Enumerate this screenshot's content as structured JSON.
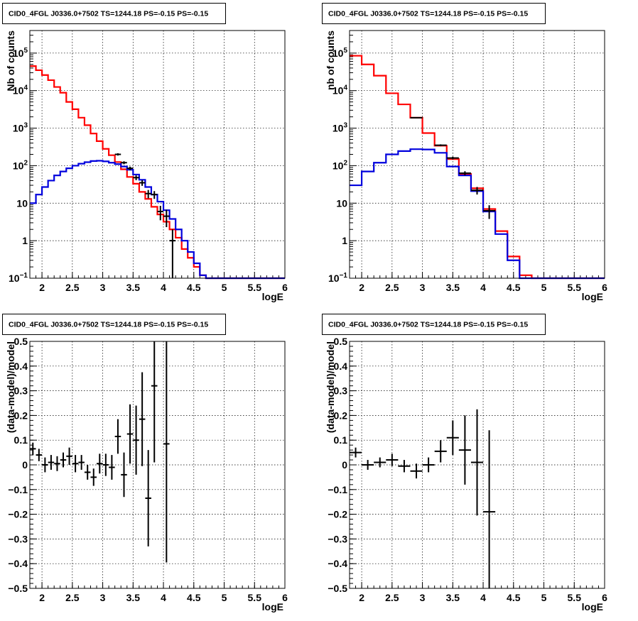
{
  "colors": {
    "data": "#000000",
    "model_total": "#ff0000",
    "model_component": "#0000dd"
  },
  "chart_data": [
    {
      "type": "line",
      "title": "CID0_4FGL J0336.0+7502 TS=1244.18 PS=-0.15 PS=-0.15",
      "xlabel": "logE",
      "ylabel": "Nb of counts",
      "xlim": [
        1.8,
        6.0
      ],
      "ylim": [
        0.1,
        400000
      ],
      "yscale": "log",
      "grid": true,
      "bin_width": 0.1,
      "x_ticks": [
        "2",
        "2.5",
        "3",
        "3.5",
        "4",
        "4.5",
        "5",
        "5.5",
        "6"
      ],
      "y_ticks": [
        "10^-1",
        "1",
        "10",
        "10^2",
        "10^3",
        "10^4",
        "10^5"
      ],
      "series": [
        {
          "color": "red",
          "style": "histogram",
          "x": [
            1.8,
            1.9,
            2.0,
            2.1,
            2.2,
            2.3,
            2.4,
            2.5,
            2.6,
            2.7,
            2.8,
            2.9,
            3.0,
            3.1,
            3.2,
            3.3,
            3.4,
            3.5,
            3.6,
            3.7,
            3.8,
            3.9,
            4.0,
            4.1,
            4.2,
            4.3,
            4.4,
            4.5,
            4.6,
            4.7,
            4.8,
            4.9,
            5.0,
            5.1,
            5.2,
            5.3,
            5.4,
            5.5,
            5.6,
            5.7,
            5.8,
            5.9
          ],
          "values": [
            45000,
            35000,
            26000,
            19000,
            12500,
            8800,
            5000,
            3200,
            1900,
            1200,
            720,
            450,
            280,
            190,
            125,
            80,
            50,
            33,
            20,
            13,
            8,
            5,
            3.2,
            2,
            1.2,
            0.6,
            0.35,
            0.2,
            0.12,
            0.1,
            0.1,
            0.1,
            0.1,
            0.1,
            0.1,
            0.1,
            0.1,
            0.1,
            0.1,
            0.1,
            0.1,
            0.1
          ]
        },
        {
          "color": "blue",
          "style": "histogram",
          "x": [
            1.8,
            1.9,
            2.0,
            2.1,
            2.2,
            2.3,
            2.4,
            2.5,
            2.6,
            2.7,
            2.8,
            2.9,
            3.0,
            3.1,
            3.2,
            3.3,
            3.4,
            3.5,
            3.6,
            3.7,
            3.8,
            3.9,
            4.0,
            4.1,
            4.2,
            4.3,
            4.4,
            4.5,
            4.6,
            4.7,
            4.8,
            4.9,
            5.0,
            5.1,
            5.2,
            5.3,
            5.4,
            5.5,
            5.6,
            5.7,
            5.8,
            5.9
          ],
          "values": [
            10,
            17,
            27,
            40,
            55,
            70,
            85,
            100,
            113,
            124,
            133,
            135,
            130,
            120,
            110,
            95,
            78,
            58,
            42,
            27,
            17,
            11,
            6.5,
            3.8,
            2,
            1,
            0.5,
            0.25,
            0.12,
            0.1,
            0.1,
            0.1,
            0.1,
            0.1,
            0.1,
            0.1,
            0.1,
            0.1,
            0.1,
            0.1,
            0.1,
            0.1
          ]
        },
        {
          "color": "black",
          "style": "points",
          "x": [
            3.25,
            3.35,
            3.45,
            3.55,
            3.65,
            3.75,
            3.85,
            3.95,
            4.05,
            4.15
          ],
          "values": [
            200,
            120,
            85,
            48,
            35,
            18,
            17,
            6,
            4.5,
            1
          ],
          "err": [
            14,
            11,
            9,
            7,
            6,
            4.5,
            4,
            2.5,
            2.2,
            1
          ]
        }
      ]
    },
    {
      "type": "line",
      "title": "CID0_4FGL J0336.0+7502 TS=1244.18 PS=-0.15 PS=-0.15",
      "xlabel": "logE",
      "ylabel": "nb of counts",
      "xlim": [
        1.8,
        6.0
      ],
      "ylim": [
        0.1,
        400000
      ],
      "yscale": "log",
      "grid": true,
      "bin_width": 0.2,
      "x_ticks": [
        "2",
        "2.5",
        "3",
        "3.5",
        "4",
        "4.5",
        "5",
        "5.5",
        "6"
      ],
      "y_ticks": [
        "10^-1",
        "1",
        "10",
        "10^2",
        "10^3",
        "10^4",
        "10^5"
      ],
      "series": [
        {
          "color": "red",
          "style": "histogram",
          "x": [
            1.8,
            2.0,
            2.2,
            2.4,
            2.6,
            2.8,
            3.0,
            3.2,
            3.4,
            3.6,
            3.8,
            4.0,
            4.2,
            4.4,
            4.6,
            4.8,
            5.0,
            5.2,
            5.4,
            5.6,
            5.8
          ],
          "values": [
            85000,
            50000,
            25000,
            8500,
            4300,
            1900,
            740,
            340,
            150,
            60,
            25,
            7,
            1.8,
            0.38,
            0.12,
            0.1,
            0.1,
            0.1,
            0.1,
            0.1,
            0.1
          ]
        },
        {
          "color": "blue",
          "style": "histogram",
          "x": [
            1.8,
            2.0,
            2.2,
            2.4,
            2.6,
            2.8,
            3.0,
            3.2,
            3.4,
            3.6,
            3.8,
            4.0,
            4.2,
            4.4,
            4.6,
            4.8,
            5.0,
            5.2,
            5.4,
            5.6,
            5.8
          ],
          "values": [
            30,
            70,
            120,
            200,
            245,
            275,
            270,
            220,
            95,
            55,
            21,
            6,
            1.5,
            0.3,
            0.1,
            0.1,
            0.1,
            0.1,
            0.1,
            0.1,
            0.1
          ]
        },
        {
          "color": "black",
          "style": "points",
          "x": [
            2.9,
            3.3,
            3.5,
            3.7,
            3.9,
            4.1
          ],
          "values": [
            1900,
            350,
            160,
            63,
            22,
            6.3
          ],
          "err": [
            45,
            20,
            13,
            8,
            5,
            2.5
          ]
        }
      ]
    },
    {
      "type": "scatter",
      "title": "CID0_4FGL J0336.0+7502 TS=1244.18 PS=-0.15 PS=-0.15",
      "xlabel": "logE",
      "ylabel": "(data-model)/model",
      "xlim": [
        1.8,
        6.0
      ],
      "ylim": [
        -0.5,
        0.5
      ],
      "grid": true,
      "bin_width": 0.1,
      "x_ticks": [
        "2",
        "2.5",
        "3",
        "3.5",
        "4",
        "4.5",
        "5",
        "5.5",
        "6"
      ],
      "y_ticks": [
        "-0.5",
        "-0.4",
        "-0.3",
        "-0.2",
        "-0.1",
        "0",
        "0.1",
        "0.2",
        "0.3",
        "0.4",
        "0.5"
      ],
      "series": [
        {
          "color": "black",
          "style": "points",
          "x": [
            1.85,
            1.95,
            2.05,
            2.15,
            2.25,
            2.35,
            2.45,
            2.55,
            2.65,
            2.75,
            2.85,
            2.95,
            3.05,
            3.15,
            3.25,
            3.35,
            3.45,
            3.55,
            3.65,
            3.75,
            3.85,
            3.95,
            4.05
          ],
          "values": [
            0.065,
            0.04,
            0.0,
            0.01,
            0.005,
            0.02,
            0.035,
            0.005,
            0.01,
            -0.03,
            -0.05,
            0.005,
            0.0,
            -0.01,
            0.115,
            -0.04,
            0.125,
            0.1,
            0.185,
            -0.135,
            0.32,
            null,
            0.085
          ],
          "err": [
            0.025,
            0.025,
            0.03,
            0.03,
            0.03,
            0.03,
            0.035,
            0.035,
            0.03,
            0.03,
            0.035,
            0.04,
            0.045,
            0.05,
            0.07,
            0.09,
            0.12,
            0.14,
            0.19,
            0.195,
            0.31,
            null,
            0.48
          ]
        }
      ]
    },
    {
      "type": "scatter",
      "title": "CID0_4FGL J0336.0+7502 TS=1244.18 PS=-0.15 PS=-0.15",
      "xlabel": "logE",
      "ylabel": "(data-model)/model",
      "xlim": [
        1.8,
        6.0
      ],
      "ylim": [
        -0.5,
        0.5
      ],
      "grid": true,
      "bin_width": 0.2,
      "x_ticks": [
        "2",
        "2.5",
        "3",
        "3.5",
        "4",
        "4.5",
        "5",
        "5.5",
        "6"
      ],
      "y_ticks": [
        "-0.5",
        "-0.4",
        "-0.3",
        "-0.2",
        "-0.1",
        "0",
        "0.1",
        "0.2",
        "0.3",
        "0.4",
        "0.5"
      ],
      "series": [
        {
          "color": "black",
          "style": "points",
          "x": [
            1.9,
            2.1,
            2.3,
            2.5,
            2.7,
            2.9,
            3.1,
            3.3,
            3.5,
            3.7,
            3.9,
            4.1
          ],
          "values": [
            0.05,
            0.0,
            0.01,
            0.02,
            -0.005,
            -0.025,
            0.0,
            0.055,
            0.11,
            0.06,
            0.01,
            -0.19
          ],
          "err": [
            0.02,
            0.02,
            0.02,
            0.025,
            0.025,
            0.03,
            0.03,
            0.045,
            0.07,
            0.14,
            0.215,
            0.33
          ]
        }
      ]
    }
  ]
}
